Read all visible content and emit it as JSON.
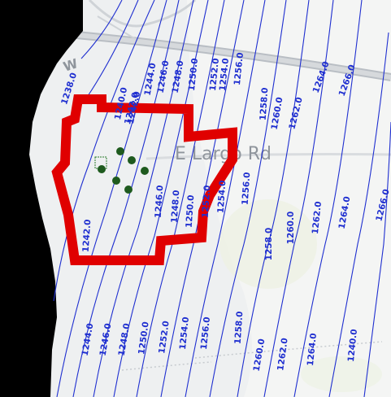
{
  "map": {
    "road_label": "E Largo Rd",
    "partial_road_label": "W",
    "contour_color": "#1f2fd0",
    "boundary_color": "#e00000",
    "well_color": "#1e5a1e",
    "no_data_color": "#000000",
    "basemap_color": "#eef0f1",
    "contour_labels": [
      "1238.0",
      "1240.0",
      "1242.0",
      "1244.0",
      "1246.0",
      "1248.0",
      "1250.0",
      "1252.0",
      "1254.0",
      "1256.0",
      "1258.0",
      "1260.0",
      "1262.0",
      "1264.0",
      "1266.0",
      "1246.0",
      "1248.0",
      "1250.0",
      "1252.0",
      "1254.0",
      "1256.0",
      "1258.0",
      "1260.0",
      "1262.0",
      "1264.0",
      "1266.0",
      "1242.0",
      "1244.0",
      "1246.0",
      "1248.0",
      "1250.0",
      "1252.0",
      "1254.0",
      "1256.0",
      "1258.0",
      "1260.0",
      "1262.0",
      "1264.0",
      "1240.0",
      "1242.0"
    ]
  }
}
